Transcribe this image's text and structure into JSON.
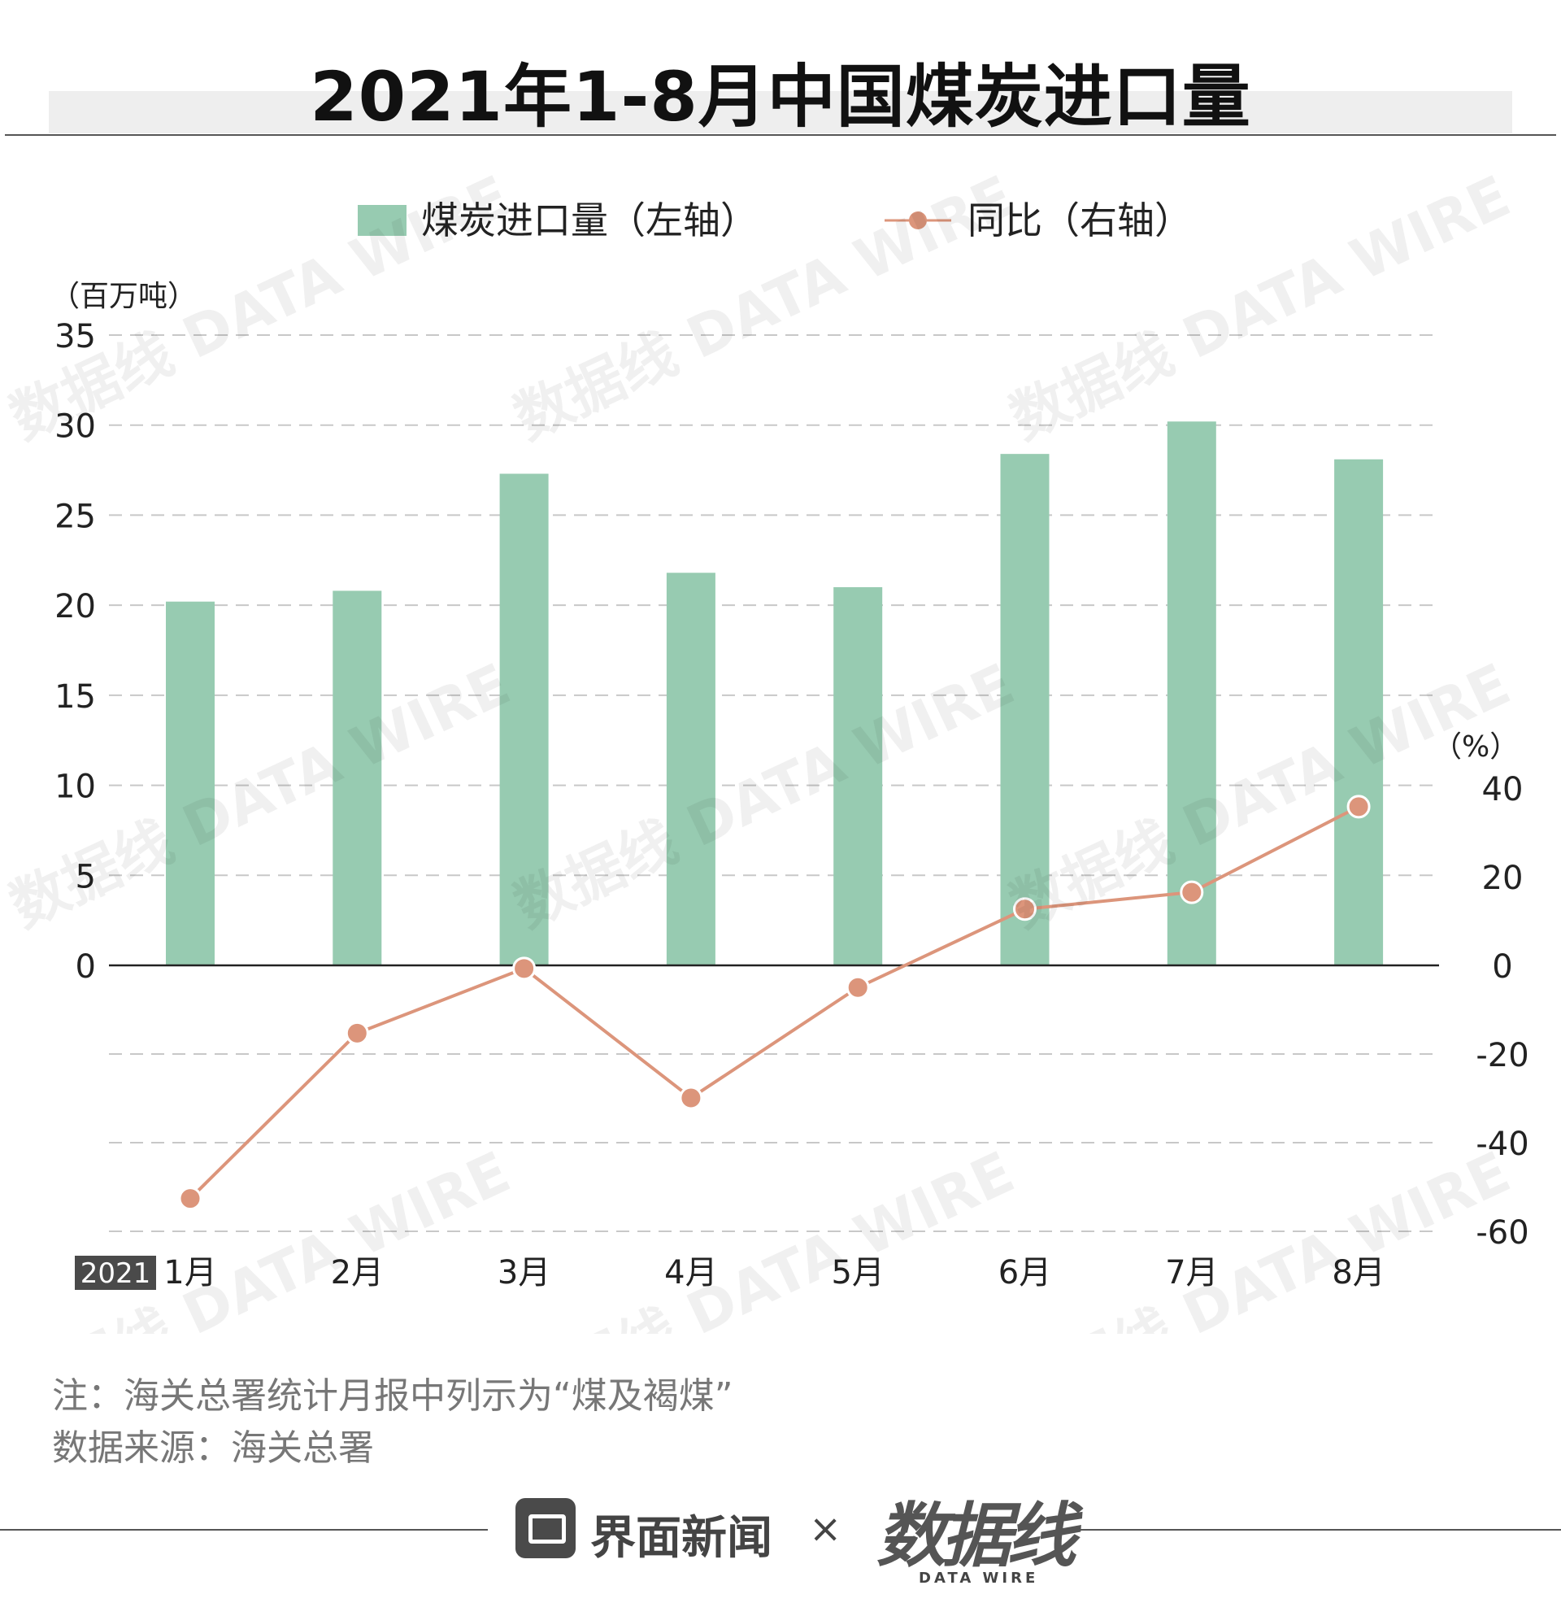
{
  "title": "2021年1-8月中国煤炭进口量",
  "chart_data": {
    "type": "bar+line",
    "categories": [
      "1月",
      "2月",
      "3月",
      "4月",
      "5月",
      "6月",
      "7月",
      "8月"
    ],
    "year_tag": "2021",
    "series": [
      {
        "name": "煤炭进口量（左轴）",
        "type": "bar",
        "axis": "left",
        "color": "#97cbb1",
        "values": [
          20.2,
          20.8,
          27.3,
          21.8,
          21.0,
          28.4,
          30.2,
          28.1
        ]
      },
      {
        "name": "同比（右轴）",
        "type": "line",
        "axis": "right",
        "color": "#dc957b",
        "values": [
          -52.6,
          -15.3,
          -0.7,
          -29.9,
          -5.0,
          12.7,
          16.5,
          35.8
        ]
      }
    ],
    "left_axis": {
      "label": "（百万吨）",
      "min": 0,
      "max": 35,
      "ticks": [
        "35",
        "30",
        "25",
        "20",
        "15",
        "10",
        "5",
        "0"
      ]
    },
    "right_axis": {
      "label": "（%）",
      "min": -60,
      "max": 40,
      "ticks": [
        "40",
        "20",
        "0",
        "-20",
        "-40",
        "-60"
      ]
    },
    "grid": true,
    "legend": "top-center",
    "watermark": "数据线 DATA WIRE"
  },
  "notes": {
    "note": "注：海关总署统计月报中列示为“煤及褐煤”",
    "source": "数据来源：海关总署"
  },
  "footer": {
    "brand": "界面新闻",
    "times": "×",
    "logo": "数据线",
    "logo_sub": "DATA WIRE"
  }
}
